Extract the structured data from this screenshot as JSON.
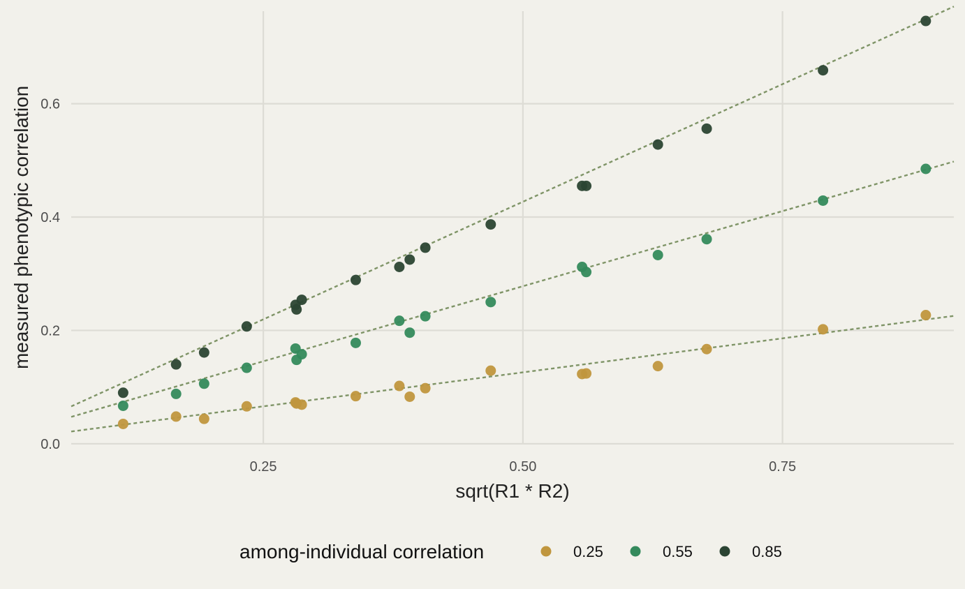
{
  "chart_data": {
    "type": "scatter",
    "xlabel": "sqrt(R1 * R2)",
    "ylabel": "measured phenotypic correlation",
    "xlim": [
      0.065,
      0.915
    ],
    "ylim": [
      -0.01,
      0.783
    ],
    "x_ticks": [
      0.25,
      0.5,
      0.75
    ],
    "x_tick_labels": [
      "0.25",
      "0.50",
      "0.75"
    ],
    "y_ticks": [
      0.0,
      0.2,
      0.4,
      0.6
    ],
    "y_tick_labels": [
      "0.0",
      "0.2",
      "0.4",
      "0.6"
    ],
    "grid": true,
    "legend": {
      "title": "among-individual correlation",
      "position": "bottom"
    },
    "trend_line_style": "dashed",
    "trend_line_color": "#7f9467",
    "background_color": "#f2f1eb",
    "grid_color": "#dddcd5",
    "series": [
      {
        "name": "0.25",
        "color": "#c0963e",
        "trend": {
          "intercept": 0.006,
          "slope": 0.24
        },
        "points": [
          [
            0.115,
            0.035
          ],
          [
            0.166,
            0.048
          ],
          [
            0.193,
            0.044
          ],
          [
            0.234,
            0.066
          ],
          [
            0.281,
            0.073
          ],
          [
            0.282,
            0.071
          ],
          [
            0.287,
            0.069
          ],
          [
            0.339,
            0.084
          ],
          [
            0.381,
            0.102
          ],
          [
            0.391,
            0.083
          ],
          [
            0.406,
            0.098
          ],
          [
            0.469,
            0.129
          ],
          [
            0.557,
            0.123
          ],
          [
            0.561,
            0.124
          ],
          [
            0.63,
            0.137
          ],
          [
            0.677,
            0.167
          ],
          [
            0.789,
            0.202
          ],
          [
            0.888,
            0.227
          ]
        ]
      },
      {
        "name": "0.55",
        "color": "#348a5c",
        "trend": {
          "intercept": 0.013,
          "slope": 0.53
        },
        "points": [
          [
            0.115,
            0.067
          ],
          [
            0.166,
            0.088
          ],
          [
            0.193,
            0.106
          ],
          [
            0.234,
            0.134
          ],
          [
            0.281,
            0.168
          ],
          [
            0.282,
            0.148
          ],
          [
            0.287,
            0.158
          ],
          [
            0.339,
            0.178
          ],
          [
            0.381,
            0.217
          ],
          [
            0.391,
            0.196
          ],
          [
            0.406,
            0.225
          ],
          [
            0.469,
            0.25
          ],
          [
            0.557,
            0.312
          ],
          [
            0.561,
            0.303
          ],
          [
            0.63,
            0.333
          ],
          [
            0.677,
            0.361
          ],
          [
            0.789,
            0.429
          ],
          [
            0.888,
            0.485
          ]
        ]
      },
      {
        "name": "0.85",
        "color": "#2b4433",
        "trend": {
          "intercept": 0.012,
          "slope": 0.83
        },
        "points": [
          [
            0.115,
            0.09
          ],
          [
            0.166,
            0.14
          ],
          [
            0.193,
            0.161
          ],
          [
            0.234,
            0.207
          ],
          [
            0.281,
            0.245
          ],
          [
            0.282,
            0.237
          ],
          [
            0.287,
            0.254
          ],
          [
            0.339,
            0.289
          ],
          [
            0.381,
            0.312
          ],
          [
            0.391,
            0.325
          ],
          [
            0.406,
            0.346
          ],
          [
            0.469,
            0.387
          ],
          [
            0.557,
            0.455
          ],
          [
            0.561,
            0.455
          ],
          [
            0.63,
            0.528
          ],
          [
            0.677,
            0.556
          ],
          [
            0.789,
            0.659
          ],
          [
            0.888,
            0.746
          ]
        ]
      }
    ]
  }
}
